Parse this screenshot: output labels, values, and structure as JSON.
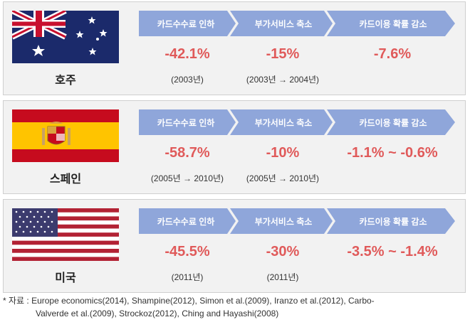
{
  "categories": {
    "fee_cut": "카드수수료 인하",
    "service_cut": "부가서비스 축소",
    "usage_drop": "카드이용 확률 감소"
  },
  "countries": [
    {
      "name": "호주",
      "flag": "australia-flag",
      "fee_cut": {
        "value": "-42.1%",
        "period": "(2003년)"
      },
      "service_cut": {
        "value": "-15%",
        "period": "(2003년 → 2004년)"
      },
      "usage_drop": {
        "value": "-7.6%"
      }
    },
    {
      "name": "스페인",
      "flag": "spain-flag",
      "fee_cut": {
        "value": "-58.7%",
        "period": "(2005년 → 2010년)"
      },
      "service_cut": {
        "value": "-10%",
        "period": "(2005년 → 2010년)"
      },
      "usage_drop": {
        "value": "-1.1% ~ -0.6%"
      }
    },
    {
      "name": "미국",
      "flag": "usa-flag",
      "fee_cut": {
        "value": "-45.5%",
        "period": "(2011년)"
      },
      "service_cut": {
        "value": "-30%",
        "period": "(2011년)"
      },
      "usage_drop": {
        "value": "-3.5% ~ -1.4%"
      }
    }
  ],
  "source": {
    "line1": "* 자료 : Europe economics(2014), Shampine(2012), Simon et al.(2009), Iranzo et al.(2012), Carbo-",
    "line2": "Valverde et al.(2009), Strockoz(2012), Ching and Hayashi(2008)"
  },
  "colors": {
    "chevron": "#8fa6da",
    "value": "#e05a5a",
    "panel": "#f2f2f2"
  }
}
